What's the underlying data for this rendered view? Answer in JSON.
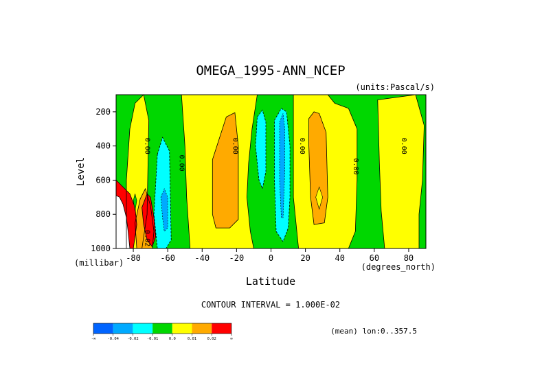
{
  "chart_data": {
    "type": "heatmap",
    "title": "OMEGA_1995-ANN_NCEP",
    "units_label": "(units:Pascal/s)",
    "xlabel": "Latitude",
    "x_units_label": "(degrees_north)",
    "ylabel": "Level",
    "y_units_label": "(millibar)",
    "xlim": [
      -90,
      90
    ],
    "ylim": [
      1000,
      100
    ],
    "x_ticks": [
      "-80",
      "-60",
      "-40",
      "-20",
      "0",
      "20",
      "40",
      "60",
      "80"
    ],
    "x_tick_values": [
      -80,
      -60,
      -40,
      -20,
      0,
      20,
      40,
      60,
      80
    ],
    "y_ticks": [
      "200",
      "400",
      "600",
      "800",
      "1000"
    ],
    "y_tick_values": [
      200,
      400,
      600,
      800,
      1000
    ],
    "contour_interval_text": "CONTOUR INTERVAL = 1.000E-02",
    "contour_labels": [
      "0.00",
      "0.00",
      "0.00",
      "0.00",
      "0.00",
      "0.00",
      "0.02"
    ],
    "note": "(mean) lon:0..357.5",
    "colorbar": {
      "colors": [
        "#0064ff",
        "#00aaff",
        "#00ffff",
        "#00d700",
        "#ffff00",
        "#ffaa00",
        "#ff0000"
      ],
      "labels": [
        "-∞",
        "-0.04",
        "-0.02",
        "-0.01",
        "0.0",
        "0.01",
        "0.02",
        "∞"
      ]
    },
    "regions": [
      {
        "color": "#00d700",
        "lat": [
          -90,
          90
        ],
        "lev": [
          100,
          1000
        ]
      },
      {
        "color": "#ffff00",
        "poly": [
          [
            -84,
            600
          ],
          [
            -82,
            300
          ],
          [
            -79,
            150
          ],
          [
            -74,
            100
          ],
          [
            -71,
            250
          ],
          [
            -72,
            800
          ],
          [
            -75,
            1000
          ],
          [
            -84,
            1000
          ]
        ]
      },
      {
        "color": "#00ffff",
        "poly": [
          [
            -66,
            450
          ],
          [
            -63,
            350
          ],
          [
            -59,
            430
          ],
          [
            -58,
            950
          ],
          [
            -61,
            1000
          ],
          [
            -66,
            1000
          ],
          [
            -68,
            800
          ]
        ]
      },
      {
        "color": "#ffff00",
        "poly": [
          [
            -52,
            100
          ],
          [
            -8,
            100
          ],
          [
            -11,
            300
          ],
          [
            -13,
            500
          ],
          [
            -14,
            700
          ],
          [
            -12,
            900
          ],
          [
            -10,
            1000
          ],
          [
            -47,
            1000
          ],
          [
            -49,
            700
          ],
          [
            -50,
            400
          ]
        ]
      },
      {
        "color": "#ffaa00",
        "poly": [
          [
            -34,
            480
          ],
          [
            -26,
            230
          ],
          [
            -21,
            205
          ],
          [
            -19,
            400
          ],
          [
            -19,
            830
          ],
          [
            -24,
            880
          ],
          [
            -32,
            880
          ],
          [
            -34,
            800
          ]
        ]
      },
      {
        "color": "#00ffff",
        "poly": [
          [
            -8,
            230
          ],
          [
            -5,
            190
          ],
          [
            -3,
            260
          ],
          [
            -3,
            550
          ],
          [
            -5,
            650
          ],
          [
            -7,
            600
          ],
          [
            -9,
            400
          ]
        ]
      },
      {
        "color": "#00ffff",
        "poly": [
          [
            2,
            250
          ],
          [
            6,
            180
          ],
          [
            9,
            200
          ],
          [
            11,
            400
          ],
          [
            11,
            700
          ],
          [
            10,
            880
          ],
          [
            7,
            960
          ],
          [
            3,
            900
          ],
          [
            2,
            600
          ]
        ]
      },
      {
        "color": "#ffff00",
        "poly": [
          [
            13,
            100
          ],
          [
            33,
            100
          ],
          [
            37,
            150
          ],
          [
            45,
            180
          ],
          [
            50,
            300
          ],
          [
            50,
            600
          ],
          [
            49,
            900
          ],
          [
            45,
            1000
          ],
          [
            16,
            1000
          ],
          [
            13,
            700
          ],
          [
            13,
            350
          ]
        ]
      },
      {
        "color": "#ffaa00",
        "poly": [
          [
            22,
            240
          ],
          [
            25,
            200
          ],
          [
            28,
            210
          ],
          [
            32,
            320
          ],
          [
            33,
            700
          ],
          [
            31,
            850
          ],
          [
            25,
            860
          ],
          [
            23,
            700
          ],
          [
            22,
            400
          ]
        ]
      },
      {
        "color": "#ffff00",
        "poly": [
          [
            62,
            130
          ],
          [
            84,
            100
          ],
          [
            89,
            280
          ],
          [
            88,
            600
          ],
          [
            86,
            800
          ],
          [
            86,
            1000
          ],
          [
            66,
            1000
          ],
          [
            64,
            780
          ],
          [
            63,
            500
          ]
        ]
      },
      {
        "color": "#ffaa00",
        "poly": [
          [
            -79,
            850
          ],
          [
            -76,
            710
          ],
          [
            -73,
            650
          ],
          [
            -70,
            750
          ],
          [
            -68,
            900
          ],
          [
            -69,
            1000
          ],
          [
            -78,
            1000
          ]
        ]
      },
      {
        "color": "#ff0000",
        "poly": [
          [
            -90,
            600
          ],
          [
            -86,
            640
          ],
          [
            -82,
            680
          ],
          [
            -79,
            760
          ],
          [
            -78,
            860
          ],
          [
            -80,
            1000
          ],
          [
            -90,
            1000
          ]
        ]
      },
      {
        "color": "#ff0000",
        "poly": [
          [
            -75,
            760
          ],
          [
            -72,
            680
          ],
          [
            -70,
            700
          ],
          [
            -68,
            820
          ],
          [
            -67,
            930
          ],
          [
            -69,
            990
          ],
          [
            -72,
            950
          ],
          [
            -74,
            860
          ]
        ]
      },
      {
        "color": "#ffffff",
        "poly": [
          [
            -90,
            690
          ],
          [
            -88,
            700
          ],
          [
            -86,
            740
          ],
          [
            -84,
            820
          ],
          [
            -83,
            900
          ],
          [
            -82,
            1000
          ],
          [
            -90,
            1000
          ]
        ]
      }
    ]
  }
}
